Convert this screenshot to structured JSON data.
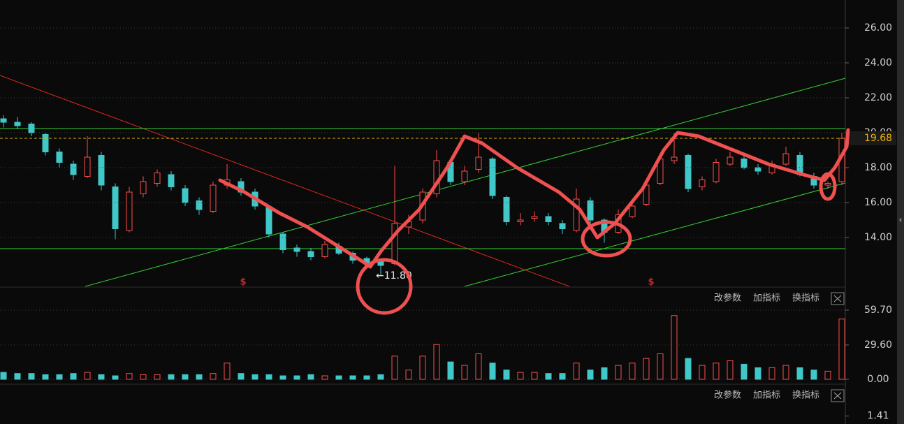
{
  "chart_data": [
    {
      "type": "candlestick",
      "open": [
        20.8,
        20.6,
        20.5,
        19.9,
        18.9,
        18.2,
        17.5,
        18.7,
        16.9,
        14.4,
        16.5,
        17.1,
        17.6,
        16.8,
        16.1,
        15.5,
        17.0,
        17.2,
        16.6,
        15.7,
        14.2,
        13.4,
        13.2,
        12.9,
        13.5,
        13.1,
        12.8,
        12.6,
        12.5,
        14.6,
        15.0,
        16.5,
        18.3,
        17.2,
        17.9,
        18.5,
        16.3,
        14.9,
        15.1,
        15.2,
        14.8,
        14.4,
        16.1,
        15.0,
        14.3,
        15.2,
        15.9,
        17.1,
        18.4,
        18.7,
        16.9,
        17.2,
        18.2,
        18.5,
        18.0,
        17.7,
        18.2,
        18.7,
        17.5,
        17.0,
        17.2
      ],
      "high": [
        21.0,
        20.9,
        20.6,
        20.0,
        19.1,
        18.4,
        19.8,
        18.9,
        17.1,
        16.9,
        17.5,
        17.9,
        17.8,
        17.0,
        16.3,
        17.2,
        18.2,
        17.4,
        16.8,
        15.8,
        14.3,
        13.6,
        13.4,
        13.8,
        13.7,
        13.2,
        12.9,
        12.7,
        18.1,
        15.3,
        16.8,
        19.0,
        18.5,
        18.1,
        20.0,
        18.6,
        16.4,
        15.4,
        15.5,
        15.4,
        15.0,
        16.8,
        16.3,
        15.1,
        15.6,
        16.2,
        17.3,
        18.8,
        20.0,
        18.8,
        17.5,
        18.5,
        18.9,
        18.7,
        18.2,
        18.4,
        19.2,
        18.9,
        17.7,
        17.2,
        20.0
      ],
      "low": [
        20.3,
        20.2,
        19.8,
        18.7,
        18.0,
        17.3,
        17.4,
        16.7,
        13.9,
        14.3,
        16.3,
        16.9,
        16.7,
        15.8,
        15.3,
        15.4,
        16.8,
        16.4,
        15.6,
        14.0,
        13.1,
        12.9,
        12.7,
        12.8,
        13.0,
        12.5,
        12.3,
        11.8,
        12.4,
        14.2,
        14.8,
        16.3,
        17.0,
        17.0,
        17.7,
        16.2,
        14.7,
        14.7,
        14.9,
        14.7,
        14.2,
        14.3,
        14.8,
        13.7,
        14.2,
        15.1,
        15.8,
        17.0,
        18.2,
        16.6,
        16.7,
        17.1,
        18.1,
        17.9,
        17.6,
        17.6,
        18.1,
        17.5,
        16.8,
        16.8,
        17.0
      ],
      "close": [
        20.6,
        20.4,
        20.0,
        18.9,
        18.3,
        17.6,
        18.6,
        17.0,
        14.5,
        16.6,
        17.2,
        17.7,
        16.9,
        16.0,
        15.6,
        17.0,
        17.3,
        16.6,
        15.8,
        14.2,
        13.3,
        13.2,
        12.9,
        13.6,
        13.1,
        12.7,
        12.5,
        12.4,
        14.8,
        14.9,
        16.6,
        18.4,
        17.2,
        17.8,
        18.6,
        16.4,
        14.9,
        15.0,
        15.2,
        14.9,
        14.5,
        16.2,
        15.0,
        14.3,
        15.3,
        15.8,
        17.0,
        18.5,
        18.6,
        16.8,
        17.3,
        18.3,
        18.6,
        18.0,
        17.8,
        18.2,
        18.8,
        17.6,
        17.0,
        17.1,
        19.68
      ],
      "up_color": "#ff4d4d",
      "down_color": "#40c8c8",
      "ylim": [
        11.2,
        27.6
      ],
      "yticks": [
        {
          "value": 14,
          "label": "14.00"
        },
        {
          "value": 16,
          "label": "16.00"
        },
        {
          "value": 18,
          "label": "18.00"
        },
        {
          "value": 20,
          "label": "20.00"
        },
        {
          "value": 22,
          "label": "22.00"
        },
        {
          "value": 24,
          "label": "24.00"
        },
        {
          "value": 26,
          "label": "26.00"
        }
      ],
      "grid": true,
      "last_price": 19.68,
      "low_label": {
        "value": 11.8,
        "label": "←11.80"
      },
      "markers": [
        "$",
        "$"
      ]
    },
    {
      "type": "bar",
      "values": [
        6,
        5,
        5,
        4,
        4,
        5,
        6,
        4,
        3,
        5,
        4,
        4,
        4,
        4,
        4,
        5,
        14,
        5,
        4,
        4,
        3,
        3,
        4,
        3,
        3,
        3,
        3,
        4,
        20,
        8,
        20,
        30,
        15,
        12,
        22,
        14,
        8,
        6,
        6,
        5,
        5,
        14,
        8,
        10,
        12,
        14,
        18,
        22,
        55,
        18,
        12,
        14,
        16,
        13,
        10,
        10,
        12,
        10,
        8,
        7,
        52
      ],
      "ylim": [
        0,
        62.1
      ],
      "yticks": [
        {
          "value": 0,
          "label": "0.00"
        },
        {
          "value": 29.6,
          "label": "29.60"
        },
        {
          "value": 59.7,
          "label": "59.70"
        }
      ],
      "grid": true,
      "toolbar": [
        "改参数",
        "加指标",
        "换指标"
      ]
    },
    {
      "type": "line",
      "ylim": [
        1.0,
        1.6
      ],
      "yticks": [
        1.41
      ],
      "toolbar": [
        "改参数",
        "加指标",
        "换指标"
      ]
    }
  ]
}
